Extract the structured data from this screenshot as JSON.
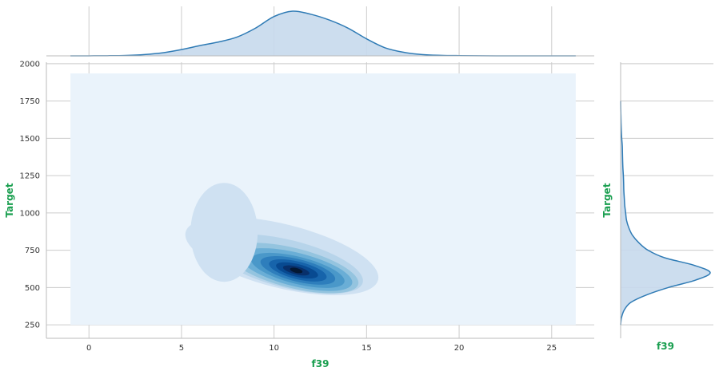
{
  "chart_data": {
    "type": "jointplot-kde",
    "x_variable": "f39",
    "y_variable": "Target",
    "xlabel": "f39",
    "ylabel": "Target",
    "marginal_xlabel": "f39",
    "marginal_ylabel": "Target",
    "xlim": [
      -2.3,
      27.3
    ],
    "ylim": [
      160,
      2010
    ],
    "x_ticks": [
      0,
      5,
      10,
      15,
      20,
      25
    ],
    "y_ticks": [
      250,
      500,
      750,
      1000,
      1250,
      1500,
      1750,
      2000
    ],
    "joint_kde_extent": {
      "x": [
        -1,
        26.3
      ],
      "y": [
        250,
        1935
      ]
    },
    "joint_kde_peak": {
      "x": 11.2,
      "y": 615
    },
    "contour_levels": 10,
    "contour_colors": [
      "#eaf3fb",
      "#cfe1f2",
      "#b7d4ea",
      "#94c4df",
      "#6aaed6",
      "#4a98c9",
      "#2e7ebc",
      "#1764ab",
      "#084a91",
      "#08306b",
      "#041833"
    ],
    "grid": true,
    "marginal_x_density": {
      "x": [
        -1,
        0,
        1,
        2,
        3,
        4,
        5,
        6,
        7,
        8,
        9,
        10,
        11,
        12,
        13,
        14,
        15,
        16,
        17,
        18,
        19,
        20,
        21,
        22,
        23,
        24,
        25,
        26.3
      ],
      "density": [
        0,
        0.001,
        0.003,
        0.01,
        0.03,
        0.07,
        0.14,
        0.23,
        0.31,
        0.42,
        0.62,
        0.88,
        1.0,
        0.93,
        0.8,
        0.62,
        0.38,
        0.18,
        0.08,
        0.03,
        0.012,
        0.005,
        0.002,
        0.001,
        0,
        0,
        0,
        0
      ]
    },
    "marginal_y_density": {
      "y": [
        250,
        300,
        350,
        400,
        450,
        500,
        550,
        600,
        650,
        700,
        750,
        800,
        850,
        900,
        950,
        1000,
        1050,
        1100,
        1150,
        1200,
        1250,
        1300,
        1350,
        1400,
        1450,
        1500,
        1550,
        1600,
        1650,
        1700,
        1750
      ],
      "density": [
        0,
        0.01,
        0.04,
        0.11,
        0.28,
        0.52,
        0.82,
        0.98,
        0.8,
        0.48,
        0.3,
        0.2,
        0.13,
        0.09,
        0.065,
        0.055,
        0.045,
        0.04,
        0.035,
        0.033,
        0.03,
        0.025,
        0.022,
        0.02,
        0.018,
        0.012,
        0.008,
        0.005,
        0.003,
        0.001,
        0
      ]
    },
    "colors": {
      "line": "#2f7bb5",
      "fill": "#c6d9ec",
      "label": "#1a9f50",
      "grid": "#cccccc",
      "axis": "#bbbbbb"
    }
  }
}
